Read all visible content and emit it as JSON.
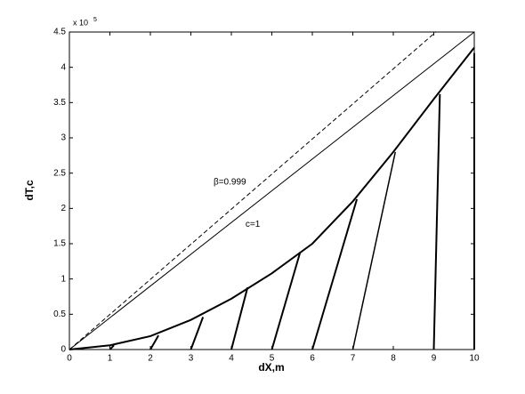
{
  "chart_data": {
    "type": "line",
    "x_label": "dX,m",
    "y_label": "dT,c",
    "y_exponent": {
      "base": "x 10",
      "power": 5
    },
    "xlim": [
      0,
      10
    ],
    "ylim": [
      0,
      4.5
    ],
    "xticks": [
      0,
      1,
      2,
      3,
      4,
      5,
      6,
      7,
      8,
      9,
      10
    ],
    "yticks": [
      0,
      0.5,
      1,
      1.5,
      2,
      2.5,
      3,
      3.5,
      4,
      4.5
    ],
    "grid": false,
    "annotations": [
      {
        "text": "β=0.999",
        "x": 3.56,
        "y": 2.37
      },
      {
        "text": "c=1",
        "x": 4.35,
        "y": 1.77
      }
    ],
    "series": [
      {
        "color": "#000000",
        "dash": true,
        "width": 1,
        "x": [
          0,
          9.05
        ],
        "values": [
          0,
          4.5
        ]
      },
      {
        "color": "#000000",
        "dash": false,
        "width": 1,
        "x": [
          0,
          10
        ],
        "values": [
          0,
          4.5
        ]
      },
      {
        "color": "#000000",
        "dash": false,
        "width": 2,
        "x": [
          0,
          1,
          2,
          3,
          4,
          5,
          6,
          7,
          8,
          9,
          10
        ],
        "values": [
          0,
          0.06,
          0.19,
          0.42,
          0.72,
          1.08,
          1.5,
          2.1,
          2.8,
          3.55,
          4.28
        ]
      },
      {
        "color": "#000000",
        "dash": false,
        "width": 2,
        "x": [
          1,
          1.1
        ],
        "values": [
          0,
          0.06
        ]
      },
      {
        "color": "#000000",
        "dash": false,
        "width": 2,
        "x": [
          2,
          2.2
        ],
        "values": [
          0,
          0.2
        ]
      },
      {
        "color": "#000000",
        "dash": false,
        "width": 2,
        "x": [
          3,
          3.3
        ],
        "values": [
          0,
          0.46
        ]
      },
      {
        "color": "#000000",
        "dash": false,
        "width": 2,
        "x": [
          4,
          4.4
        ],
        "values": [
          0,
          0.88
        ]
      },
      {
        "color": "#000000",
        "dash": false,
        "width": 2,
        "x": [
          5,
          5.7
        ],
        "values": [
          0,
          1.38
        ]
      },
      {
        "color": "#000000",
        "dash": false,
        "width": 2,
        "x": [
          6,
          7.1
        ],
        "values": [
          0,
          2.13
        ]
      },
      {
        "color": "#000000",
        "dash": false,
        "width": 1.5,
        "x": [
          7,
          8.05
        ],
        "values": [
          0,
          2.8
        ]
      },
      {
        "color": "#000000",
        "dash": false,
        "width": 2,
        "x": [
          9,
          9.15
        ],
        "values": [
          0,
          3.62
        ]
      },
      {
        "color": "#000000",
        "dash": false,
        "width": 2,
        "x": [
          10,
          10
        ],
        "values": [
          0,
          4.2
        ]
      }
    ]
  }
}
